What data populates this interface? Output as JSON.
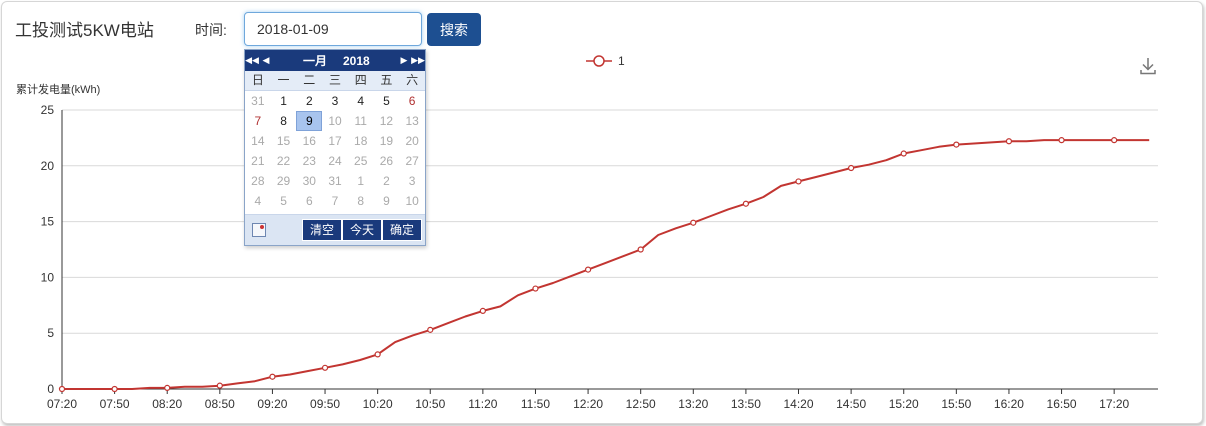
{
  "header": {
    "title": "工投测试5KW电站",
    "time_label": "时间:",
    "date_value": "2018-01-09",
    "search_label": "搜索"
  },
  "calendar": {
    "month": "一月",
    "year": "2018",
    "weekdays": [
      "日",
      "一",
      "二",
      "三",
      "四",
      "五",
      "六"
    ],
    "days": [
      {
        "d": "31",
        "t": "other"
      },
      {
        "d": "1",
        "t": "cur"
      },
      {
        "d": "2",
        "t": "cur"
      },
      {
        "d": "3",
        "t": "cur"
      },
      {
        "d": "4",
        "t": "cur"
      },
      {
        "d": "5",
        "t": "cur"
      },
      {
        "d": "6",
        "t": "wknd"
      },
      {
        "d": "7",
        "t": "wknd"
      },
      {
        "d": "8",
        "t": "cur"
      },
      {
        "d": "9",
        "t": "sel"
      },
      {
        "d": "10",
        "t": "other"
      },
      {
        "d": "11",
        "t": "other"
      },
      {
        "d": "12",
        "t": "other"
      },
      {
        "d": "13",
        "t": "other"
      },
      {
        "d": "14",
        "t": "other"
      },
      {
        "d": "15",
        "t": "other"
      },
      {
        "d": "16",
        "t": "other"
      },
      {
        "d": "17",
        "t": "other"
      },
      {
        "d": "18",
        "t": "other"
      },
      {
        "d": "19",
        "t": "other"
      },
      {
        "d": "20",
        "t": "other"
      },
      {
        "d": "21",
        "t": "other"
      },
      {
        "d": "22",
        "t": "other"
      },
      {
        "d": "23",
        "t": "other"
      },
      {
        "d": "24",
        "t": "other"
      },
      {
        "d": "25",
        "t": "other"
      },
      {
        "d": "26",
        "t": "other"
      },
      {
        "d": "27",
        "t": "other"
      },
      {
        "d": "28",
        "t": "other"
      },
      {
        "d": "29",
        "t": "other"
      },
      {
        "d": "30",
        "t": "other"
      },
      {
        "d": "31",
        "t": "other"
      },
      {
        "d": "1",
        "t": "other"
      },
      {
        "d": "2",
        "t": "other"
      },
      {
        "d": "3",
        "t": "other"
      },
      {
        "d": "4",
        "t": "other"
      },
      {
        "d": "5",
        "t": "other"
      },
      {
        "d": "6",
        "t": "other"
      },
      {
        "d": "7",
        "t": "other"
      },
      {
        "d": "8",
        "t": "other"
      },
      {
        "d": "9",
        "t": "other"
      },
      {
        "d": "10",
        "t": "other"
      }
    ],
    "clear_label": "清空",
    "today_label": "今天",
    "ok_label": "确定",
    "header_color": "#1a3a7c"
  },
  "icons": {
    "download": "download-icon",
    "calendar_nav_prev_year": "double-chevron-left-icon",
    "calendar_nav_prev_month": "chevron-left-icon",
    "calendar_nav_next_month": "chevron-right-icon",
    "calendar_nav_next_year": "double-chevron-right-icon"
  },
  "chart_data": {
    "type": "line",
    "ylabel": "累计发电量(kWh)",
    "ylim": [
      0,
      25
    ],
    "yticks": [
      0,
      5,
      10,
      15,
      20,
      25
    ],
    "xticks": [
      "07:20",
      "07:50",
      "08:20",
      "08:50",
      "09:20",
      "09:50",
      "10:20",
      "10:50",
      "11:20",
      "11:50",
      "12:20",
      "12:50",
      "13:20",
      "13:50",
      "14:20",
      "14:50",
      "15:20",
      "15:50",
      "16:20",
      "16:50",
      "17:20"
    ],
    "x_range": [
      "07:20",
      "17:45"
    ],
    "grid": "horizontal",
    "legend": {
      "position": "top-center"
    },
    "line_color": "#c23531",
    "series": [
      {
        "name": "1",
        "x": [
          "07:20",
          "07:30",
          "07:40",
          "07:50",
          "08:00",
          "08:10",
          "08:20",
          "08:30",
          "08:40",
          "08:50",
          "09:00",
          "09:10",
          "09:20",
          "09:30",
          "09:40",
          "09:50",
          "10:00",
          "10:10",
          "10:20",
          "10:30",
          "10:40",
          "10:50",
          "11:00",
          "11:10",
          "11:20",
          "11:30",
          "11:40",
          "11:50",
          "12:00",
          "12:10",
          "12:20",
          "12:30",
          "12:40",
          "12:50",
          "13:00",
          "13:10",
          "13:20",
          "13:30",
          "13:40",
          "13:50",
          "14:00",
          "14:10",
          "14:20",
          "14:30",
          "14:40",
          "14:50",
          "15:00",
          "15:10",
          "15:20",
          "15:30",
          "15:40",
          "15:50",
          "16:00",
          "16:10",
          "16:20",
          "16:30",
          "16:40",
          "16:50",
          "17:00",
          "17:10",
          "17:20",
          "17:30",
          "17:40"
        ],
        "values": [
          0.0,
          0.0,
          0.0,
          0.0,
          0.0,
          0.1,
          0.1,
          0.2,
          0.2,
          0.3,
          0.5,
          0.7,
          1.1,
          1.3,
          1.6,
          1.9,
          2.2,
          2.6,
          3.1,
          4.2,
          4.8,
          5.3,
          5.9,
          6.5,
          7.0,
          7.4,
          8.4,
          9.0,
          9.5,
          10.1,
          10.7,
          11.3,
          11.9,
          12.5,
          13.8,
          14.4,
          14.9,
          15.5,
          16.1,
          16.6,
          17.2,
          18.2,
          18.6,
          19.0,
          19.4,
          19.8,
          20.1,
          20.5,
          21.1,
          21.4,
          21.7,
          21.9,
          22.0,
          22.1,
          22.2,
          22.2,
          22.3,
          22.3,
          22.3,
          22.3,
          22.3,
          22.3,
          22.3
        ],
        "marker_every": 3
      }
    ]
  }
}
